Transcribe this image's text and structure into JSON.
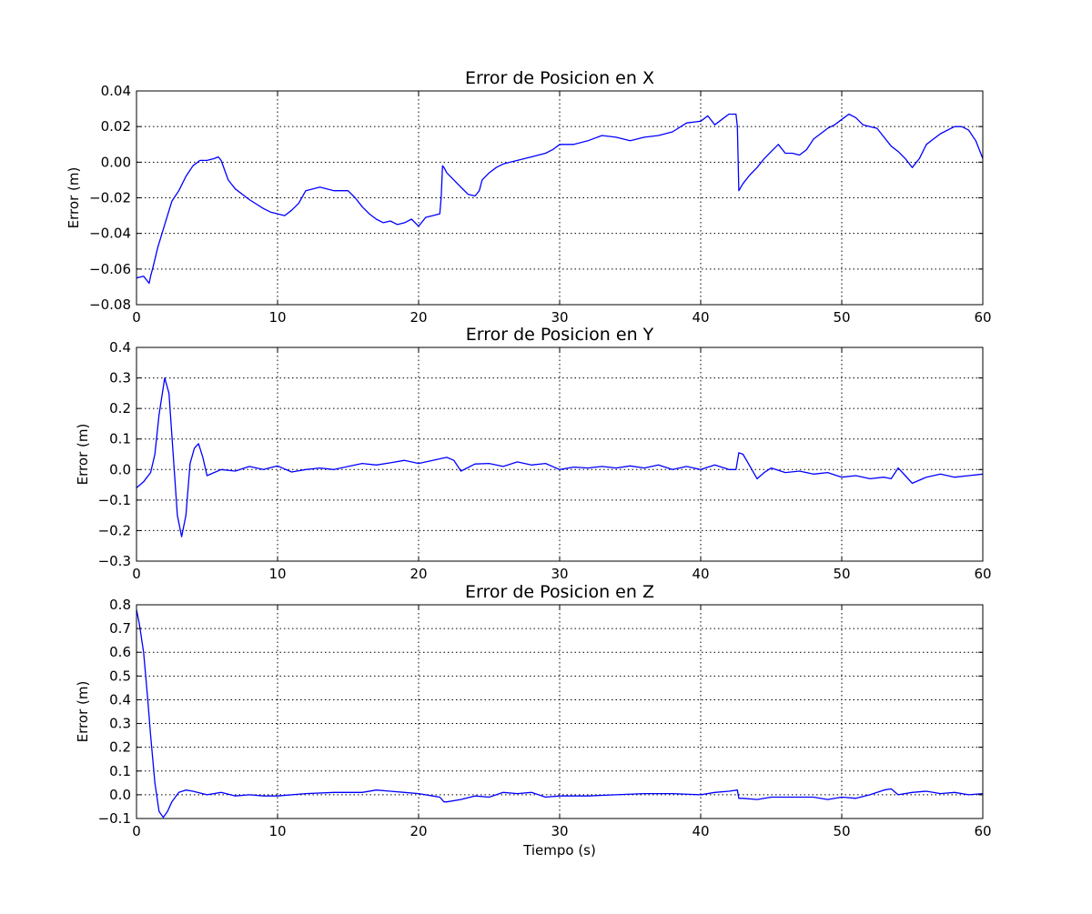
{
  "chart_data": [
    {
      "type": "line",
      "title": "Error de Posicion en X",
      "xlabel": "",
      "ylabel": "Error (m)",
      "xlim": [
        0,
        60
      ],
      "ylim": [
        -0.08,
        0.04
      ],
      "xticks": [
        0,
        10,
        20,
        30,
        40,
        50,
        60
      ],
      "xtick_labels": [
        "0",
        "10",
        "20",
        "30",
        "40",
        "50",
        "60"
      ],
      "yticks": [
        -0.08,
        -0.06,
        -0.04,
        -0.02,
        0.0,
        0.02,
        0.04
      ],
      "ytick_labels": [
        "−0.08",
        "−0.06",
        "−0.04",
        "−0.02",
        "0.00",
        "0.02",
        "0.04"
      ],
      "grid": true,
      "color": "#0000ff",
      "series": [
        {
          "x": [
            0,
            0.5,
            0.9,
            1.0,
            1.2,
            1.5,
            2.0,
            2.5,
            3.0,
            3.5,
            4.0,
            4.5,
            5.0,
            5.5,
            5.8,
            6.0,
            6.5,
            7.0,
            8.0,
            9.0,
            9.5,
            10.0,
            10.5,
            11.0,
            11.5,
            12.0,
            12.5,
            13.0,
            13.5,
            14.0,
            15.0,
            15.5,
            16.0,
            16.5,
            17.0,
            17.5,
            18.0,
            18.5,
            19.0,
            19.5,
            20.0,
            20.5,
            21.0,
            21.5,
            21.6,
            21.7,
            21.8,
            22.0,
            22.5,
            23.0,
            23.5,
            24.0,
            24.3,
            24.5,
            25.0,
            25.5,
            26.0,
            27.0,
            28.0,
            29.0,
            29.5,
            30.0,
            31.0,
            32.0,
            33.0,
            34.0,
            35.0,
            36.0,
            37.0,
            38.0,
            39.0,
            40.0,
            40.5,
            41.0,
            41.5,
            42.0,
            42.5,
            42.6,
            42.7,
            43.0,
            43.5,
            44.0,
            44.5,
            45.0,
            45.5,
            46.0,
            46.5,
            47.0,
            47.5,
            48.0,
            48.5,
            49.0,
            49.5,
            50.0,
            50.5,
            51.0,
            51.5,
            52.0,
            52.5,
            53.0,
            53.5,
            54.0,
            54.5,
            55.0,
            55.5,
            56.0,
            57.0,
            58.0,
            58.5,
            59.0,
            59.5,
            60.0
          ],
          "values": [
            -0.065,
            -0.064,
            -0.068,
            -0.064,
            -0.058,
            -0.048,
            -0.035,
            -0.022,
            -0.016,
            -0.008,
            -0.002,
            0.001,
            0.001,
            0.002,
            0.003,
            0.001,
            -0.01,
            -0.015,
            -0.021,
            -0.026,
            -0.028,
            -0.029,
            -0.03,
            -0.027,
            -0.023,
            -0.016,
            -0.015,
            -0.014,
            -0.015,
            -0.016,
            -0.016,
            -0.02,
            -0.025,
            -0.029,
            -0.032,
            -0.034,
            -0.033,
            -0.035,
            -0.034,
            -0.032,
            -0.036,
            -0.031,
            -0.03,
            -0.029,
            -0.02,
            -0.002,
            -0.003,
            -0.006,
            -0.01,
            -0.014,
            -0.018,
            -0.019,
            -0.016,
            -0.01,
            -0.006,
            -0.003,
            -0.001,
            0.001,
            0.003,
            0.005,
            0.007,
            0.01,
            0.01,
            0.012,
            0.015,
            0.014,
            0.012,
            0.014,
            0.015,
            0.017,
            0.022,
            0.023,
            0.026,
            0.021,
            0.024,
            0.027,
            0.027,
            0.02,
            -0.016,
            -0.012,
            -0.007,
            -0.003,
            0.002,
            0.006,
            0.01,
            0.005,
            0.005,
            0.004,
            0.007,
            0.013,
            0.016,
            0.019,
            0.021,
            0.024,
            0.027,
            0.025,
            0.021,
            0.02,
            0.019,
            0.014,
            0.009,
            0.006,
            0.002,
            -0.003,
            0.002,
            0.01,
            0.016,
            0.02,
            0.02,
            0.018,
            0.012,
            0.002
          ]
        }
      ]
    },
    {
      "type": "line",
      "title": "Error de Posicion en Y",
      "xlabel": "",
      "ylabel": "Error (m)",
      "xlim": [
        0,
        60
      ],
      "ylim": [
        -0.3,
        0.4
      ],
      "xticks": [
        0,
        10,
        20,
        30,
        40,
        50,
        60
      ],
      "xtick_labels": [
        "0",
        "10",
        "20",
        "30",
        "40",
        "50",
        "60"
      ],
      "yticks": [
        -0.3,
        -0.2,
        -0.1,
        0.0,
        0.1,
        0.2,
        0.3,
        0.4
      ],
      "ytick_labels": [
        "−0.3",
        "−0.2",
        "−0.1",
        "0.0",
        "0.1",
        "0.2",
        "0.3",
        "0.4"
      ],
      "grid": true,
      "color": "#0000ff",
      "series": [
        {
          "x": [
            0,
            0.5,
            1.0,
            1.3,
            1.6,
            2.0,
            2.3,
            2.6,
            2.9,
            3.2,
            3.5,
            3.8,
            4.1,
            4.4,
            4.7,
            5.0,
            5.5,
            6.0,
            7.0,
            8.0,
            9.0,
            10.0,
            11.0,
            12.0,
            13.0,
            14.0,
            15.0,
            16.0,
            17.0,
            18.0,
            19.0,
            20.0,
            21.0,
            21.5,
            22.0,
            22.5,
            23.0,
            24.0,
            25.0,
            26.0,
            27.0,
            28.0,
            29.0,
            30.0,
            31.0,
            32.0,
            33.0,
            34.0,
            35.0,
            36.0,
            37.0,
            38.0,
            39.0,
            40.0,
            41.0,
            42.0,
            42.5,
            42.7,
            43.0,
            43.5,
            44.0,
            44.5,
            45.0,
            46.0,
            47.0,
            48.0,
            49.0,
            50.0,
            51.0,
            52.0,
            53.0,
            53.5,
            54.0,
            54.5,
            55.0,
            56.0,
            57.0,
            58.0,
            59.0,
            60.0
          ],
          "values": [
            -0.06,
            -0.04,
            -0.01,
            0.05,
            0.18,
            0.3,
            0.25,
            0.05,
            -0.15,
            -0.22,
            -0.15,
            0.02,
            0.07,
            0.085,
            0.04,
            -0.02,
            -0.01,
            0.0,
            -0.005,
            0.01,
            0.0,
            0.012,
            -0.008,
            0.0,
            0.005,
            0.0,
            0.01,
            0.02,
            0.015,
            0.022,
            0.03,
            0.02,
            0.03,
            0.035,
            0.04,
            0.03,
            -0.005,
            0.018,
            0.02,
            0.01,
            0.025,
            0.015,
            0.02,
            0.0,
            0.008,
            0.005,
            0.01,
            0.005,
            0.012,
            0.005,
            0.015,
            0.0,
            0.01,
            0.0,
            0.015,
            0.0,
            0.0,
            0.055,
            0.05,
            0.01,
            -0.03,
            -0.01,
            0.005,
            -0.01,
            -0.005,
            -0.015,
            -0.01,
            -0.025,
            -0.02,
            -0.03,
            -0.025,
            -0.03,
            0.005,
            -0.02,
            -0.045,
            -0.025,
            -0.015,
            -0.025,
            -0.02,
            -0.015
          ]
        }
      ]
    },
    {
      "type": "line",
      "title": "Error de Posicion en Z",
      "xlabel": "Tiempo (s)",
      "ylabel": "Error (m)",
      "xlim": [
        0,
        60
      ],
      "ylim": [
        -0.1,
        0.8
      ],
      "xticks": [
        0,
        10,
        20,
        30,
        40,
        50,
        60
      ],
      "xtick_labels": [
        "0",
        "10",
        "20",
        "30",
        "40",
        "50",
        "60"
      ],
      "yticks": [
        -0.1,
        0.0,
        0.1,
        0.2,
        0.3,
        0.4,
        0.5,
        0.6,
        0.7,
        0.8
      ],
      "ytick_labels": [
        "−0.1",
        "0.0",
        "0.1",
        "0.2",
        "0.3",
        "0.4",
        "0.5",
        "0.6",
        "0.7",
        "0.8"
      ],
      "grid": true,
      "color": "#0000ff",
      "series": [
        {
          "x": [
            0,
            0.2,
            0.5,
            0.8,
            1.0,
            1.3,
            1.6,
            1.9,
            2.2,
            2.5,
            3.0,
            3.5,
            4.0,
            5.0,
            6.0,
            7.0,
            8.0,
            9.0,
            10.0,
            12.0,
            14.0,
            16.0,
            17.0,
            18.0,
            19.0,
            20.0,
            21.0,
            21.5,
            21.8,
            22.0,
            23.0,
            24.0,
            25.0,
            26.0,
            27.0,
            28.0,
            29.0,
            30.0,
            32.0,
            34.0,
            36.0,
            38.0,
            40.0,
            41.0,
            42.0,
            42.6,
            42.7,
            43.0,
            44.0,
            45.0,
            46.0,
            47.0,
            48.0,
            49.0,
            50.0,
            51.0,
            52.0,
            53.0,
            53.5,
            54.0,
            55.0,
            56.0,
            57.0,
            58.0,
            59.0,
            60.0
          ],
          "values": [
            0.78,
            0.72,
            0.6,
            0.4,
            0.25,
            0.05,
            -0.07,
            -0.095,
            -0.07,
            -0.03,
            0.01,
            0.02,
            0.015,
            0.0,
            0.01,
            -0.005,
            0.0,
            -0.005,
            -0.005,
            0.005,
            0.01,
            0.01,
            0.02,
            0.015,
            0.01,
            0.005,
            -0.005,
            -0.01,
            -0.03,
            -0.03,
            -0.02,
            -0.005,
            -0.01,
            0.01,
            0.005,
            0.01,
            -0.01,
            -0.005,
            -0.005,
            0.0,
            0.005,
            0.005,
            0.0,
            0.01,
            0.015,
            0.02,
            -0.015,
            -0.015,
            -0.02,
            -0.01,
            -0.01,
            -0.01,
            -0.01,
            -0.02,
            -0.01,
            -0.015,
            0.0,
            0.02,
            0.025,
            0.0,
            0.01,
            0.015,
            0.005,
            0.01,
            0.0,
            0.005
          ]
        }
      ]
    }
  ]
}
